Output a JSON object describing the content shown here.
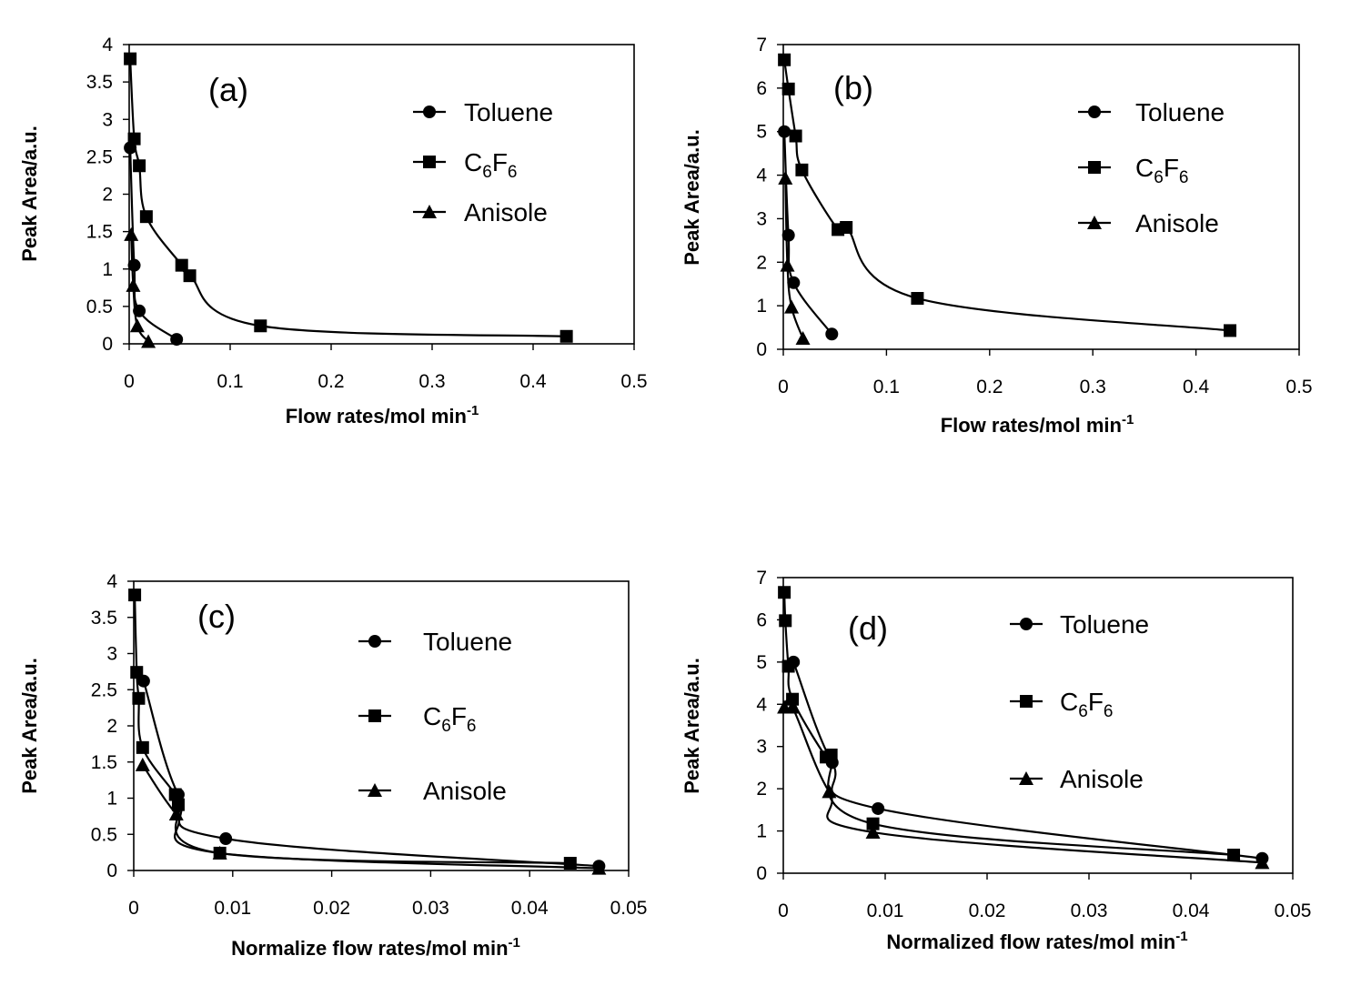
{
  "legend": [
    {
      "label": "Toluene",
      "marker": "circle"
    },
    {
      "label": "C6F6",
      "marker": "square"
    },
    {
      "label": "Anisole",
      "marker": "triangle"
    }
  ],
  "chart_data": [
    {
      "type": "line",
      "panel_label": "(a)",
      "xlabel": "Flow rates/mol min-1",
      "ylabel": "Peak Area/a.u.",
      "xlim": [
        0,
        0.5
      ],
      "ylim": [
        0,
        4
      ],
      "xticks": [
        "0",
        "0.1",
        "0.2",
        "0.3",
        "0.4",
        "0.5"
      ],
      "yticks": [
        "0",
        "0.5",
        "1",
        "1.5",
        "2",
        "2.5",
        "3",
        "3.5",
        "4"
      ],
      "legend_position": "top-right",
      "grid": false,
      "series": [
        {
          "name": "Toluene",
          "marker": "circle",
          "x": [
            0.001,
            0.005,
            0.01,
            0.047
          ],
          "y": [
            2.62,
            1.05,
            0.44,
            0.06
          ]
        },
        {
          "name": "C6F6",
          "marker": "square",
          "x": [
            0.001,
            0.005,
            0.01,
            0.017,
            0.052,
            0.06,
            0.13,
            0.433
          ],
          "y": [
            3.81,
            2.74,
            2.38,
            1.7,
            1.05,
            0.91,
            0.24,
            0.1
          ]
        },
        {
          "name": "Anisole",
          "marker": "triangle",
          "x": [
            0.002,
            0.004,
            0.008,
            0.019
          ],
          "y": [
            1.46,
            0.78,
            0.24,
            0.03
          ]
        }
      ]
    },
    {
      "type": "line",
      "panel_label": "(b)",
      "xlabel": "Flow rates/mol min-1",
      "ylabel": "Peak Area/a.u.",
      "xlim": [
        0,
        0.5
      ],
      "ylim": [
        0,
        7
      ],
      "xticks": [
        "0",
        "0.1",
        "0.2",
        "0.3",
        "0.4",
        "0.5"
      ],
      "yticks": [
        "0",
        "1",
        "2",
        "3",
        "4",
        "5",
        "6",
        "7"
      ],
      "legend_position": "top-right",
      "grid": false,
      "series": [
        {
          "name": "Toluene",
          "marker": "circle",
          "x": [
            0.001,
            0.005,
            0.01,
            0.047
          ],
          "y": [
            5.0,
            2.62,
            1.53,
            0.35
          ]
        },
        {
          "name": "C6F6",
          "marker": "square",
          "x": [
            0.001,
            0.005,
            0.012,
            0.018,
            0.053,
            0.061,
            0.13,
            0.433
          ],
          "y": [
            6.65,
            5.98,
            4.9,
            4.12,
            2.75,
            2.8,
            1.17,
            0.43
          ]
        },
        {
          "name": "Anisole",
          "marker": "triangle",
          "x": [
            0.002,
            0.004,
            0.008,
            0.019
          ],
          "y": [
            3.93,
            1.93,
            0.97,
            0.25
          ]
        }
      ]
    },
    {
      "type": "line",
      "panel_label": "(c)",
      "xlabel": "Normalize flow rates/mol min-1",
      "ylabel": "Peak Area/a.u.",
      "xlim": [
        0,
        0.05
      ],
      "ylim": [
        0,
        4
      ],
      "xticks": [
        "0",
        "0.01",
        "0.02",
        "0.03",
        "0.04",
        "0.05"
      ],
      "yticks": [
        "0",
        "0.5",
        "1",
        "1.5",
        "2",
        "2.5",
        "3",
        "3.5",
        "4"
      ],
      "legend_position": "top-right",
      "grid": false,
      "series": [
        {
          "name": "Toluene",
          "marker": "circle",
          "x": [
            0.001,
            0.0045,
            0.0093,
            0.047
          ],
          "y": [
            2.62,
            1.05,
            0.44,
            0.06
          ]
        },
        {
          "name": "C6F6",
          "marker": "square",
          "x": [
            0.0001,
            0.0003,
            0.0005,
            0.0009,
            0.0042,
            0.0045,
            0.0087,
            0.0441
          ],
          "y": [
            3.81,
            2.74,
            2.38,
            1.7,
            1.05,
            0.91,
            0.24,
            0.1
          ]
        },
        {
          "name": "Anisole",
          "marker": "triangle",
          "x": [
            0.0009,
            0.0043,
            0.0087,
            0.047
          ],
          "y": [
            1.46,
            0.78,
            0.24,
            0.03
          ]
        }
      ]
    },
    {
      "type": "line",
      "panel_label": "(d)",
      "xlabel": "Normalized flow rates/mol min-1",
      "ylabel": "Peak Area/a.u.",
      "xlim": [
        0,
        0.05
      ],
      "ylim": [
        0,
        7
      ],
      "xticks": [
        "0",
        "0.01",
        "0.02",
        "0.03",
        "0.04",
        "0.05"
      ],
      "yticks": [
        "0",
        "1",
        "2",
        "3",
        "4",
        "5",
        "6",
        "7"
      ],
      "legend_position": "top-right",
      "grid": false,
      "series": [
        {
          "name": "Toluene",
          "marker": "circle",
          "x": [
            0.001,
            0.0048,
            0.0093,
            0.047
          ],
          "y": [
            5.0,
            2.62,
            1.53,
            0.35
          ]
        },
        {
          "name": "C6F6",
          "marker": "square",
          "x": [
            0.0001,
            0.0002,
            0.0005,
            0.0009,
            0.0042,
            0.0047,
            0.0088,
            0.0442
          ],
          "y": [
            6.65,
            5.98,
            4.9,
            4.12,
            2.75,
            2.8,
            1.17,
            0.43
          ]
        },
        {
          "name": "Anisole",
          "marker": "triangle",
          "x": [
            0.0001,
            0.0009,
            0.0045,
            0.0088,
            0.047
          ],
          "y": [
            3.93,
            3.93,
            1.93,
            0.97,
            0.25
          ]
        }
      ]
    }
  ]
}
